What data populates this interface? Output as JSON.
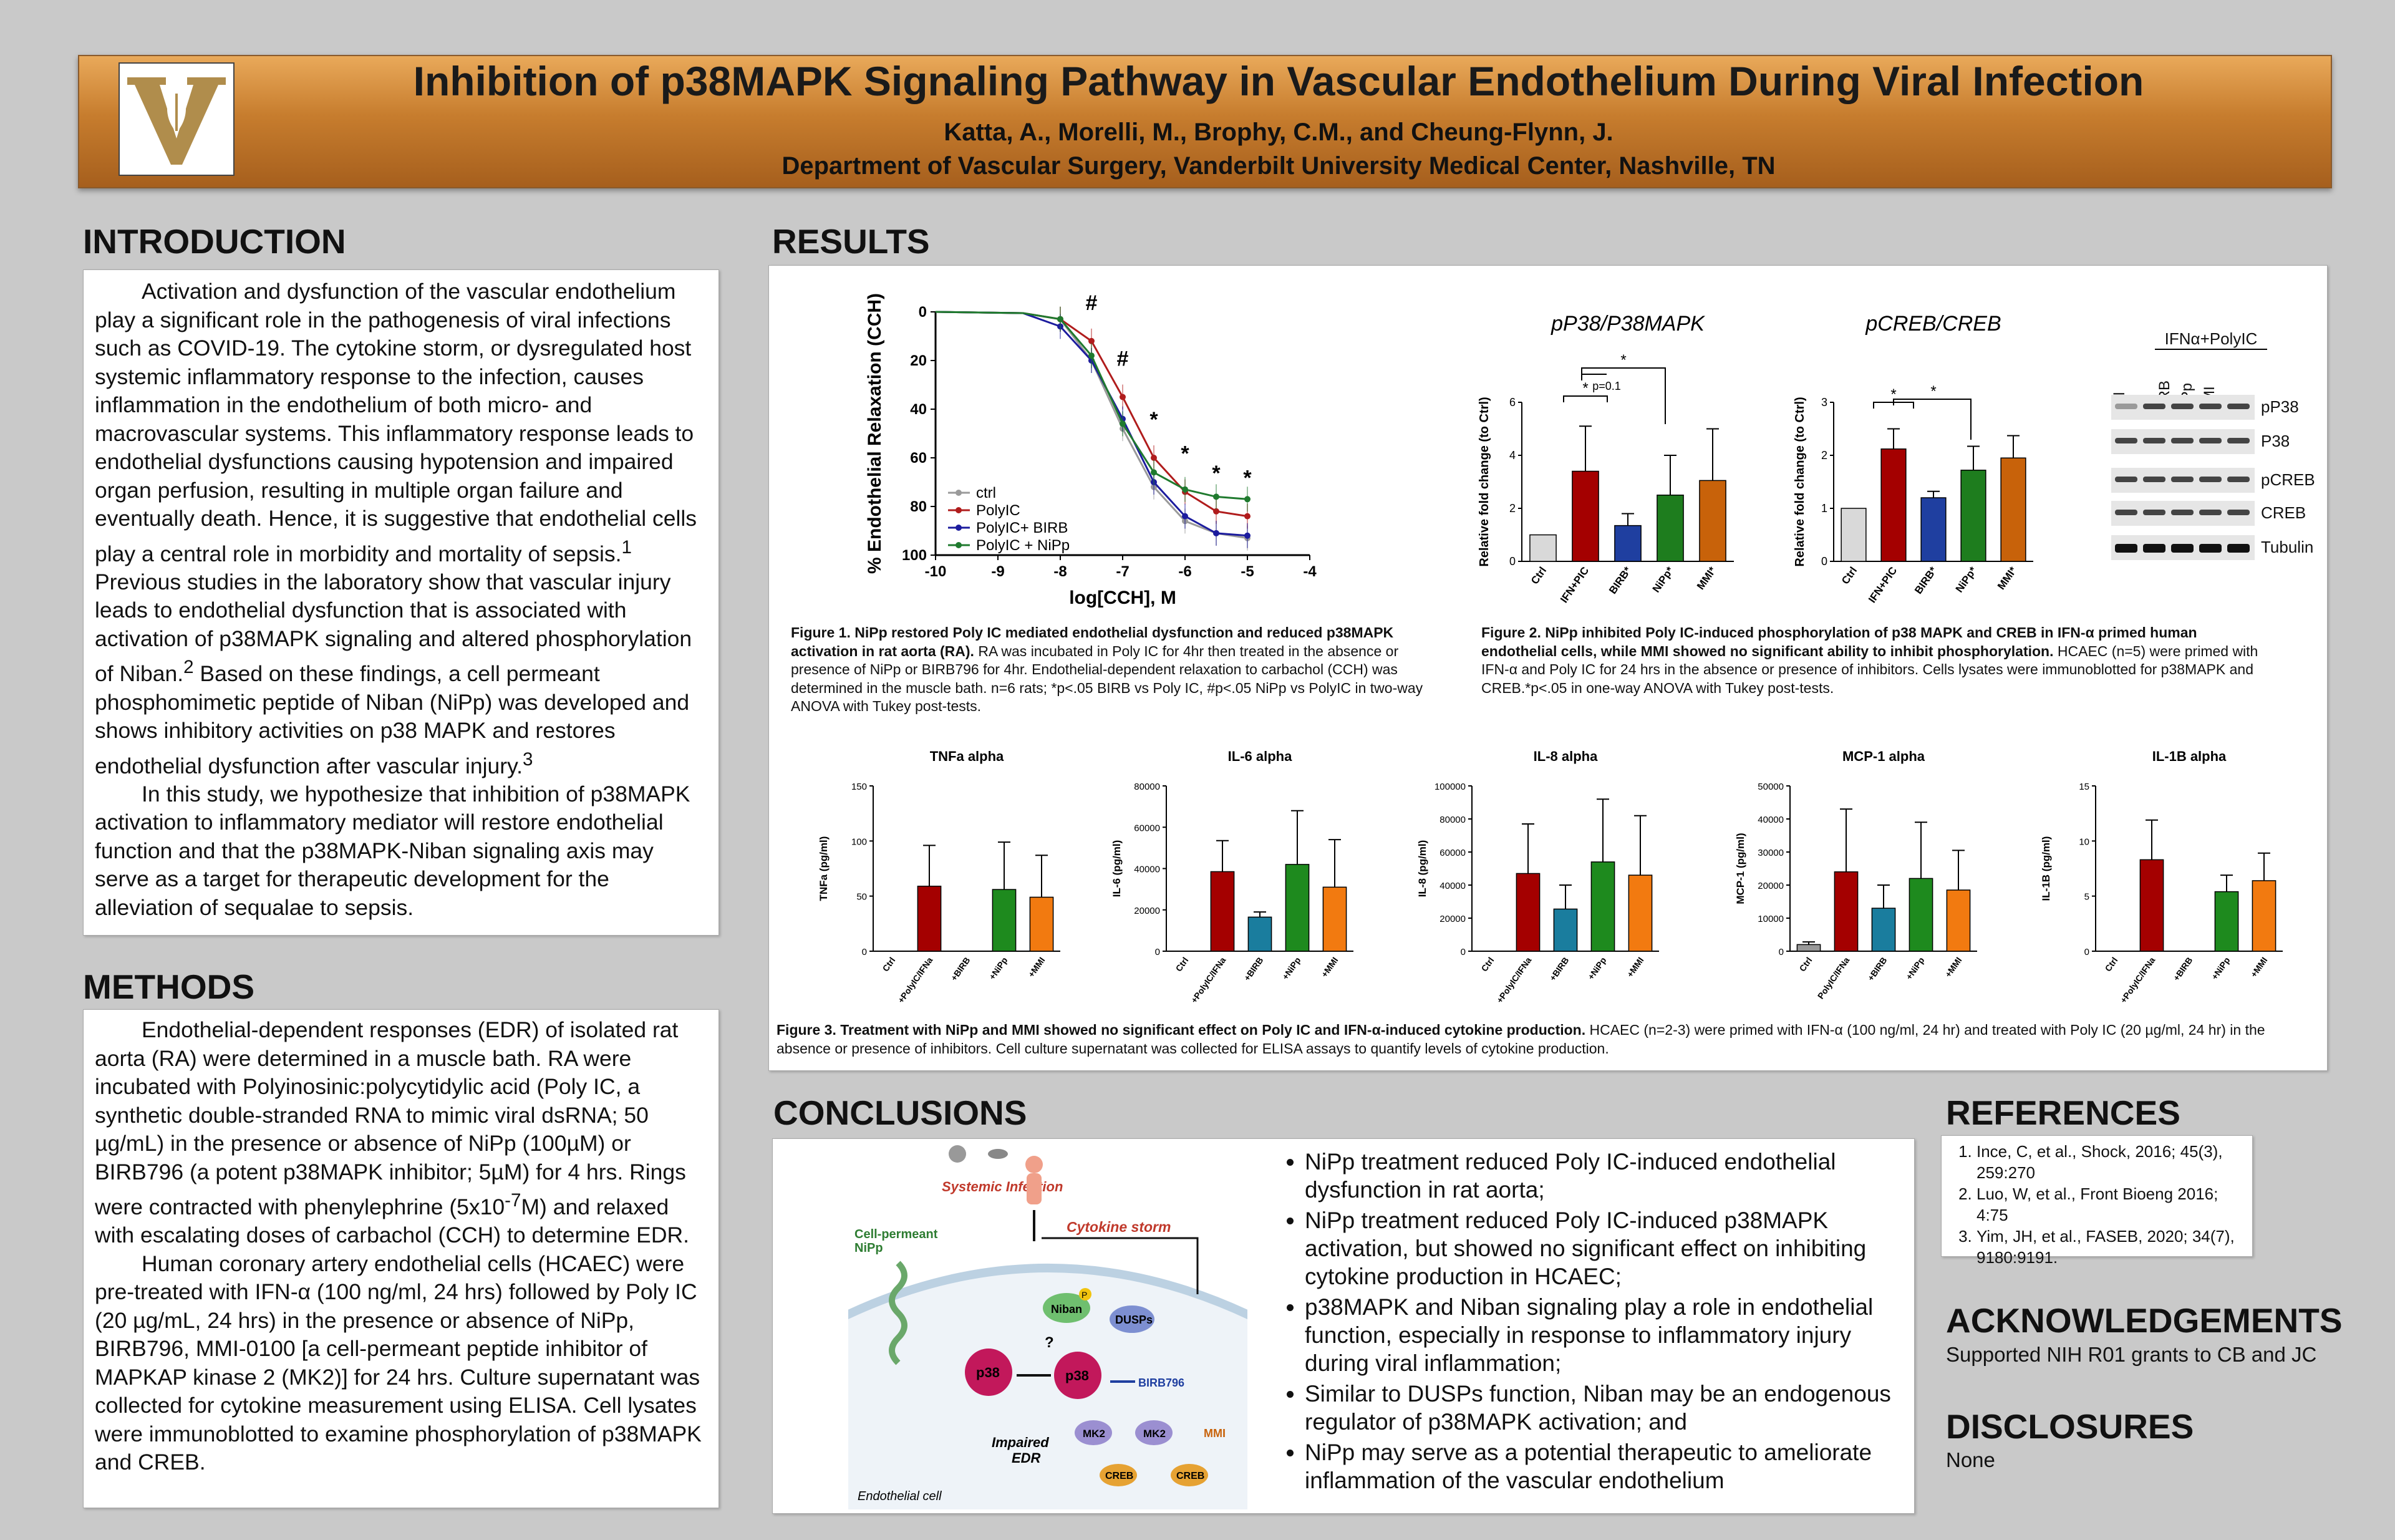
{
  "header": {
    "title": "Inhibition of p38MAPK Signaling Pathway in Vascular Endothelium During Viral Infection",
    "authors": "Katta, A., Morelli, M., Brophy, C.M., and Cheung-Flynn, J.",
    "department": "Department of Vascular Surgery, Vanderbilt University Medical Center, Nashville, TN"
  },
  "introduction": {
    "heading": "INTRODUCTION",
    "p1": "Activation and dysfunction of the vascular endothelium play a significant role in the pathogenesis of viral infections such as COVID-19. The cytokine storm, or dysregulated host systemic inflammatory response to the infection, causes inflammation in the endothelium of both micro- and macrovascular systems. This inflammatory response leads to endothelial dysfunctions causing hypotension and impaired organ perfusion, resulting in multiple organ failure and eventually death. Hence, it is suggestive that endothelial cells play a central role in morbidity and mortality of sepsis.",
    "p1_sup": "1",
    "p1b": " Previous studies in the laboratory show that vascular injury leads to endothelial dysfunction that is associated with activation of p38MAPK signaling and altered phosphorylation of Niban.",
    "p1b_sup": "2",
    "p1c": " Based on these findings, a cell permeant phosphomimetic peptide of Niban (NiPp) was developed and shows inhibitory activities on p38 MAPK and restores endothelial dysfunction after vascular injury.",
    "p1c_sup": "3",
    "p2": "In this study, we hypothesize that inhibition of p38MAPK activation to inflammatory mediator will restore endothelial function and that the p38MAPK-Niban signaling axis may serve as a target for therapeutic development for the alleviation of sequalae to sepsis."
  },
  "methods": {
    "heading": "METHODS",
    "p1": "Endothelial-dependent responses (EDR) of isolated rat aorta (RA) were determined in a muscle bath. RA were incubated with Polyinosinic:polycytidylic acid (Poly IC, a synthetic double-stranded RNA to mimic viral dsRNA; 50 µg/mL) in the presence or absence of NiPp (100µM) or BIRB796 (a potent p38MAPK inhibitor; 5µM) for 4 hrs. Rings were contracted with phenylephrine (5x10",
    "p1_sup": "-7",
    "p1_end": "M) and relaxed with escalating doses of carbachol (CCH) to determine EDR.",
    "p2": "Human coronary artery endothelial cells (HCAEC) were pre-treated with IFN-α (100 ng/ml, 24 hrs) followed by Poly IC (20 µg/mL, 24 hrs) in the presence or absence of NiPp, BIRB796, MMI-0100 [a cell-permeant peptide inhibitor of MAPKAP kinase 2 (MK2)] for 24 hrs. Culture supernatant was collected for cytokine measurement using ELISA. Cell lysates were immunoblotted to examine phosphorylation of p38MAPK and CREB."
  },
  "results": {
    "heading": "RESULTS",
    "fig1_caption_bold": "Figure 1. NiPp restored Poly IC mediated endothelial dysfunction and reduced p38MAPK activation in rat aorta (RA).",
    "fig1_caption": " RA was incubated in Poly IC for 4hr then treated in the absence or presence of NiPp or BIRB796 for 4hr. Endothelial-dependent relaxation to carbachol (CCH) was determined in the muscle bath. n=6 rats; *p<.05 BIRB vs Poly IC, #p<.05 NiPp vs PolyIC in two-way ANOVA with Tukey post-tests.",
    "fig2_caption_bold": "Figure 2. NiPp inhibited Poly IC-induced phosphorylation of p38 MAPK and CREB in IFN-α primed human endothelial cells, while MMI showed no significant ability to inhibit phosphorylation.",
    "fig2_caption": " HCAEC (n=5) were primed with IFN-α and Poly IC for 24 hrs in the absence or presence of inhibitors. Cells lysates were immunoblotted for p38MAPK and CREB.*p<.05 in one-way ANOVA with Tukey post-tests.",
    "fig3_caption_bold": "Figure 3. Treatment with NiPp and MMI showed no significant effect on Poly IC and IFN-α-induced cytokine production.",
    "fig3_caption": " HCAEC (n=2-3) were primed with IFN-α (100 ng/ml, 24 hr) and treated with Poly IC (20 µg/ml, 24 hr) in the absence or presence of inhibitors. Cell culture supernatant was collected for ELISA assays to quantify levels of cytokine production.",
    "blot": {
      "header": "IFNα+PolyIC",
      "lanes": [
        "Ctrl",
        "-",
        "BIRB",
        "NiPp",
        "MMI"
      ],
      "bands": [
        "pP38",
        "P38",
        "pCREB",
        "CREB",
        "Tubulin"
      ]
    }
  },
  "chart_data": [
    {
      "type": "line",
      "xlabel": "log[CCH], M",
      "ylabel": "% Endothelial Relaxation (CCH)",
      "xlim": [
        -10,
        -4
      ],
      "ylim": [
        100,
        0
      ],
      "xticks": [
        "-10",
        "-9",
        "-8",
        "-7",
        "-6",
        "-5",
        "-4"
      ],
      "yticks": [
        "0",
        "20",
        "40",
        "60",
        "80",
        "100"
      ],
      "legend_position": "bottom-left",
      "annotations": [
        {
          "text": "#",
          "x": -7.5
        },
        {
          "text": "#",
          "x": -7.0
        },
        {
          "text": "*",
          "x": -6.5
        },
        {
          "text": "*",
          "x": -6.0
        },
        {
          "text": "*",
          "x": -5.5
        },
        {
          "text": "*",
          "x": -5.0
        }
      ],
      "x": [
        -8,
        -7.5,
        -7,
        -6.5,
        -6,
        -5.5,
        -5
      ],
      "series": [
        {
          "name": "ctrl",
          "color": "#9a9a9a",
          "values": [
            3,
            20,
            48,
            72,
            86,
            91,
            93
          ]
        },
        {
          "name": "PolyIC",
          "color": "#b01c1c",
          "values": [
            3,
            12,
            35,
            60,
            74,
            82,
            84
          ]
        },
        {
          "name": "PolyIC+ BIRB",
          "color": "#1c1c9e",
          "values": [
            6,
            20,
            44,
            70,
            84,
            91,
            92
          ]
        },
        {
          "name": "PolyIC + NiPp",
          "color": "#1f7a2e",
          "values": [
            3,
            18,
            46,
            66,
            73,
            76,
            77
          ]
        }
      ]
    },
    {
      "type": "bar",
      "title": "pP38/P38MAPK",
      "ylabel": "Relative fold change (to Ctrl)",
      "ylim": [
        0,
        6
      ],
      "yticks": [
        "0",
        "2",
        "4",
        "6"
      ],
      "categories": [
        "Ctrl",
        "IFN+PIC",
        "BIRB*",
        "NiPp*",
        "MMI*"
      ],
      "values": [
        1.0,
        3.4,
        1.35,
        2.5,
        3.05
      ],
      "errors": [
        0,
        1.7,
        0.45,
        1.5,
        1.95
      ],
      "colors": [
        "#d9d9d9",
        "#a40000",
        "#1f3fa0",
        "#1e7d1e",
        "#c8620a"
      ],
      "annotations": [
        "*",
        "p=0.1",
        "*"
      ]
    },
    {
      "type": "bar",
      "title": "pCREB/CREB",
      "ylabel": "Relative fold change (to Ctrl)",
      "ylim": [
        0,
        3
      ],
      "yticks": [
        "0",
        "1",
        "2",
        "3"
      ],
      "categories": [
        "Ctrl",
        "IFN+PIC",
        "BIRB*",
        "NiPp*",
        "MMI*"
      ],
      "values": [
        1.0,
        2.12,
        1.2,
        1.72,
        1.95
      ],
      "errors": [
        0,
        0.38,
        0.12,
        0.45,
        0.42
      ],
      "colors": [
        "#d9d9d9",
        "#a40000",
        "#1f3fa0",
        "#1e7d1e",
        "#c8620a"
      ],
      "annotations": [
        "*",
        "*"
      ]
    },
    {
      "type": "bar",
      "title": "TNFa alpha",
      "ylabel": "TNFa (pg/ml)",
      "ylim": [
        0,
        150
      ],
      "yticks": [
        "0",
        "50",
        "100",
        "150"
      ],
      "categories": [
        "Ctrl",
        "+PolyIC/IFNa",
        "+BIRB",
        "+NiPp",
        "+MMI"
      ],
      "values": [
        0,
        59,
        0,
        56,
        49
      ],
      "errors": [
        0,
        37,
        0,
        43,
        38
      ],
      "colors": [
        "#999999",
        "#a40000",
        "#1a7d9e",
        "#1e8a1e",
        "#f27a10"
      ]
    },
    {
      "type": "bar",
      "title": "IL-6 alpha",
      "ylabel": "IL-6 (pg/ml)",
      "ylim": [
        0,
        80000
      ],
      "yticks": [
        "0",
        "20000",
        "40000",
        "60000",
        "80000"
      ],
      "categories": [
        "Ctrl",
        "+PolyIC/IFNa",
        "+BIRB",
        "+NiPp",
        "+MMI"
      ],
      "values": [
        0,
        38500,
        16500,
        42000,
        31000
      ],
      "errors": [
        0,
        15000,
        2500,
        26000,
        23000
      ],
      "colors": [
        "#999999",
        "#a40000",
        "#1a7d9e",
        "#1e8a1e",
        "#f27a10"
      ]
    },
    {
      "type": "bar",
      "title": "IL-8 alpha",
      "ylabel": "IL-8 (pg/ml)",
      "ylim": [
        0,
        100000
      ],
      "yticks": [
        "0",
        "20000",
        "40000",
        "60000",
        "80000",
        "100000"
      ],
      "categories": [
        "Ctrl",
        "+PolyIC/IFNa",
        "+BIRB",
        "+NiPp",
        "+MMI"
      ],
      "values": [
        0,
        47000,
        25500,
        54000,
        46000
      ],
      "errors": [
        0,
        30000,
        14500,
        38000,
        36000
      ],
      "colors": [
        "#999999",
        "#a40000",
        "#1a7d9e",
        "#1e8a1e",
        "#f27a10"
      ]
    },
    {
      "type": "bar",
      "title": "MCP-1 alpha",
      "ylabel": "MCP-1 (pg/ml)",
      "ylim": [
        0,
        50000
      ],
      "yticks": [
        "0",
        "10000",
        "20000",
        "30000",
        "40000",
        "50000"
      ],
      "categories": [
        "Ctrl",
        "PolyIC/IFNa",
        "+BIRB",
        "+NiPp",
        "+MMI"
      ],
      "values": [
        2000,
        24000,
        13000,
        22000,
        18500
      ],
      "errors": [
        800,
        19000,
        7000,
        17000,
        12000
      ],
      "colors": [
        "#999999",
        "#a40000",
        "#1a7d9e",
        "#1e8a1e",
        "#f27a10"
      ]
    },
    {
      "type": "bar",
      "title": "IL-1B alpha",
      "ylabel": "IL-1B (pg/ml)",
      "ylim": [
        0,
        15
      ],
      "yticks": [
        "0",
        "5",
        "10",
        "15"
      ],
      "categories": [
        "Ctrl",
        "+PolyIC/IFNa",
        "+BIRB",
        "+NiPp",
        "+MMI"
      ],
      "values": [
        0,
        8.3,
        0,
        5.4,
        6.4
      ],
      "errors": [
        0,
        3.6,
        0,
        1.5,
        2.5
      ],
      "colors": [
        "#999999",
        "#a40000",
        "#1a7d9e",
        "#1e8a1e",
        "#f27a10"
      ]
    }
  ],
  "conclusions": {
    "heading": "CONCLUSIONS",
    "items": [
      "NiPp treatment reduced Poly IC-induced endothelial dysfunction in rat aorta;",
      "NiPp treatment reduced Poly IC-induced p38MAPK activation, but showed no significant effect on inhibiting cytokine production in HCAEC;",
      "p38MAPK and Niban signaling play a role in endothelial function, especially in response to inflammatory injury during viral inflammation;",
      "Similar to DUSPs function, Niban may be an endogenous regulator of p38MAPK activation; and",
      "NiPp may serve as a potential therapeutic to ameliorate inflammation of the vascular endothelium"
    ],
    "diagram": {
      "systemic_infection": "Systemic Infection",
      "cytokine_storm": "Cytokine storm",
      "cell_permeant": "Cell-permeant",
      "nipp": "NiPp",
      "niban": "Niban",
      "dusps": "DUSPs",
      "p38": "p38",
      "birb": "BIRB796",
      "impaired": "Impaired",
      "edr": "EDR",
      "mk2": "MK2",
      "mmi": "MMI",
      "creb": "CREB",
      "p": "P",
      "q": "?",
      "cell": "Endothelial cell"
    }
  },
  "references": {
    "heading": "REFERENCES",
    "items": [
      "Ince, C, et al., Shock, 2016; 45(3), 259:270",
      "Luo, W, et al., Front Bioeng 2016; 4:75",
      "Yim, JH, et al., FASEB, 2020; 34(7), 9180:9191."
    ]
  },
  "acknowledgements": {
    "heading": "ACKNOWLEDGEMENTS",
    "text": "Supported NIH R01 grants to CB and JC"
  },
  "disclosures": {
    "heading": "DISCLOSURES",
    "text": "None"
  }
}
